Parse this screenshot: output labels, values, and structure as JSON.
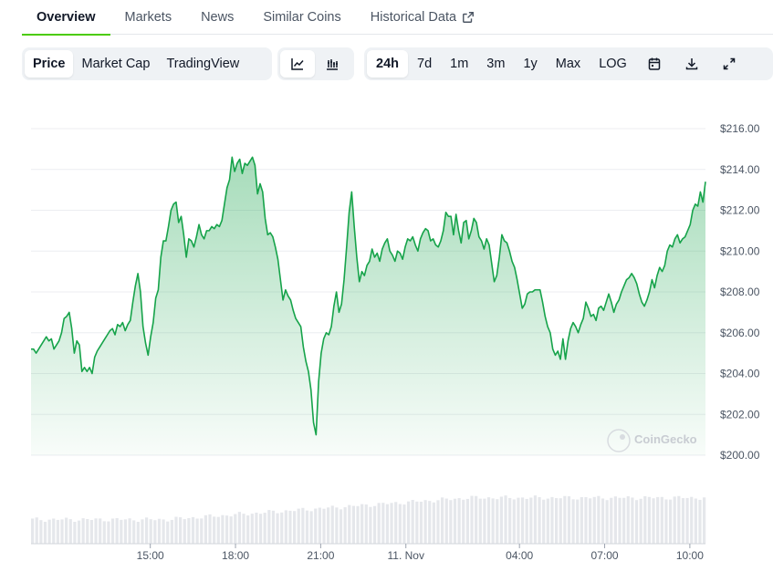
{
  "tabs": [
    {
      "label": "Overview",
      "active": true
    },
    {
      "label": "Markets",
      "active": false
    },
    {
      "label": "News",
      "active": false
    },
    {
      "label": "Similar Coins",
      "active": false
    },
    {
      "label": "Historical Data",
      "active": false,
      "external_icon": "external-link-icon"
    }
  ],
  "toolbar": {
    "chart_modes": [
      {
        "label": "Price",
        "active": true
      },
      {
        "label": "Market Cap",
        "active": false
      },
      {
        "label": "TradingView",
        "active": false
      }
    ],
    "chart_styles": [
      {
        "icon": "line-chart-icon",
        "active": true
      },
      {
        "icon": "candlestick-chart-icon",
        "active": false
      }
    ],
    "ranges": [
      {
        "label": "24h",
        "active": true
      },
      {
        "label": "7d",
        "active": false
      },
      {
        "label": "1m",
        "active": false
      },
      {
        "label": "3m",
        "active": false
      },
      {
        "label": "1y",
        "active": false
      },
      {
        "label": "Max",
        "active": false
      },
      {
        "label": "LOG",
        "active": false
      }
    ],
    "actions": [
      "calendar-icon",
      "download-icon",
      "fullscreen-icon"
    ]
  },
  "watermark": "CoinGecko",
  "colors": {
    "line": "#16a34a",
    "accent_tab": "#4bcc00",
    "volume_bar": "#e5e7eb"
  },
  "chart_data": {
    "type": "area",
    "ylim": [
      200,
      216.5
    ],
    "yticks": [
      "$200.00",
      "$202.00",
      "$204.00",
      "$206.00",
      "$208.00",
      "$210.00",
      "$212.00",
      "$214.00",
      "$216.00"
    ],
    "ytick_values": [
      200,
      202,
      204,
      206,
      208,
      210,
      212,
      214,
      216
    ],
    "xticks": [
      "15:00",
      "18:00",
      "21:00",
      "11. Nov",
      "04:00",
      "07:00",
      "10:00"
    ],
    "xtick_hours": [
      15,
      18,
      21,
      24,
      28,
      31,
      34
    ],
    "x_start_hour": 10.8,
    "x_end_hour": 34.55,
    "series": [
      {
        "values": [
          205.2,
          205.2,
          205.0,
          205.2,
          205.4,
          205.6,
          205.8,
          205.6,
          205.7,
          205.2,
          205.4,
          205.6,
          206.0,
          206.7,
          206.8,
          207.0,
          206.2,
          205.0,
          205.6,
          205.4,
          204.1,
          204.3,
          204.1,
          204.3,
          204.0,
          204.8,
          205.1,
          205.3,
          205.5,
          205.7,
          205.9,
          206.1,
          206.2,
          205.9,
          206.4,
          206.3,
          206.5,
          206.1,
          206.4,
          206.6,
          207.5,
          208.3,
          208.9,
          208.0,
          206.3,
          205.5,
          204.9,
          205.8,
          206.5,
          207.7,
          208.1,
          209.7,
          210.5,
          210.5,
          211.2,
          212.0,
          212.3,
          212.4,
          211.4,
          211.7,
          210.8,
          209.7,
          210.6,
          210.5,
          210.2,
          210.7,
          211.3,
          210.8,
          210.6,
          211.0,
          211.0,
          211.2,
          211.1,
          211.3,
          211.2,
          211.5,
          212.3,
          213.1,
          213.5,
          214.6,
          213.9,
          214.3,
          214.5,
          213.8,
          214.3,
          214.2,
          214.4,
          214.6,
          214.2,
          212.8,
          213.3,
          212.9,
          211.6,
          210.8,
          210.9,
          210.7,
          210.2,
          209.6,
          208.6,
          207.6,
          208.1,
          207.8,
          207.6,
          207.1,
          206.7,
          206.5,
          206.3,
          205.3,
          204.6,
          204.1,
          203.2,
          201.6,
          201.0,
          203.6,
          205.0,
          205.7,
          206.0,
          205.9,
          206.3,
          207.3,
          208.0,
          207.0,
          207.4,
          208.6,
          210.2,
          211.9,
          212.9,
          211.2,
          209.7,
          208.5,
          209.0,
          208.8,
          209.3,
          209.5,
          210.1,
          209.7,
          209.9,
          209.5,
          210.1,
          210.4,
          210.6,
          210.0,
          209.8,
          209.5,
          210.0,
          209.9,
          209.6,
          210.2,
          210.6,
          210.5,
          210.7,
          210.3,
          210.0,
          210.6,
          210.9,
          211.1,
          211.0,
          210.5,
          210.6,
          210.3,
          210.2,
          210.5,
          211.0,
          211.9,
          211.7,
          211.7,
          210.8,
          211.8,
          211.0,
          210.4,
          211.4,
          211.5,
          210.6,
          211.0,
          211.6,
          211.4,
          210.7,
          210.5,
          210.1,
          210.6,
          210.3,
          209.4,
          208.5,
          208.8,
          209.7,
          210.8,
          210.5,
          210.4,
          210.0,
          209.5,
          209.2,
          208.6,
          207.9,
          207.2,
          207.4,
          207.9,
          208.0,
          208.0,
          208.1,
          208.1,
          208.1,
          207.5,
          206.8,
          206.3,
          206.0,
          205.2,
          204.9,
          205.1,
          204.7,
          205.7,
          204.7,
          205.6,
          206.2,
          206.5,
          206.3,
          206.0,
          206.4,
          206.7,
          207.5,
          207.2,
          206.8,
          206.9,
          206.6,
          207.2,
          207.3,
          207.1,
          207.5,
          207.9,
          207.5,
          207.0,
          207.4,
          207.6,
          208.0,
          208.3,
          208.6,
          208.7,
          208.9,
          208.7,
          208.4,
          207.9,
          207.5,
          207.3,
          207.6,
          208.0,
          208.6,
          208.2,
          208.8,
          209.2,
          209.0,
          209.3,
          210.0,
          210.3,
          210.2,
          210.6,
          210.8,
          210.4,
          210.6,
          210.7,
          211.0,
          211.3,
          212.0,
          212.3,
          212.2,
          212.9,
          212.4,
          213.4
        ]
      }
    ]
  }
}
